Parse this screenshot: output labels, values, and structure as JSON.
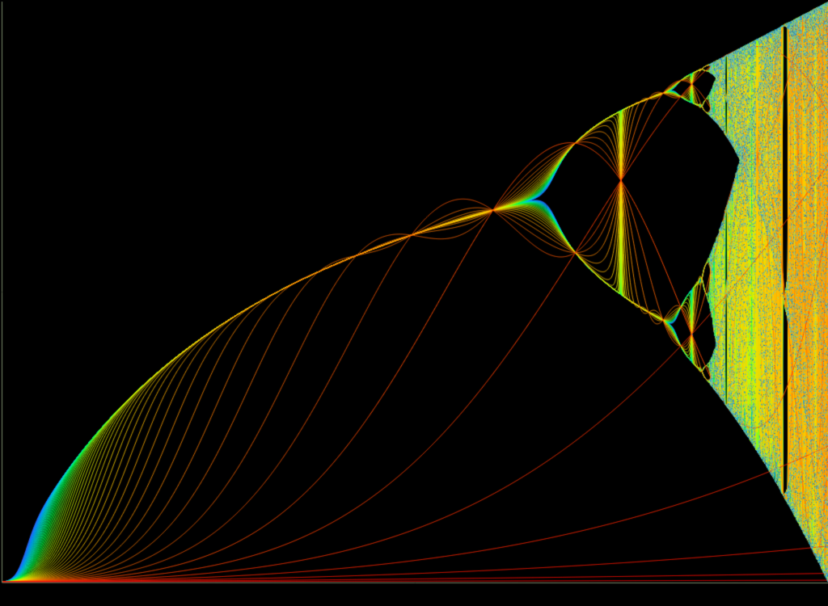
{
  "scene": {
    "subject": "logistic-map-bifurcation-iterates",
    "background_color": "#000000",
    "axis_color": "#7a8a6a",
    "iterate_palette": [
      "#ff0000",
      "#ff6a00",
      "#ffd000",
      "#c8ff00",
      "#00ff40",
      "#00e0c0",
      "#00a0ff",
      "#3060ff"
    ],
    "chaos_palette": [
      "#1a6fb0",
      "#2aa0d0",
      "#58c0e0",
      "#90d060",
      "#d0e040"
    ],
    "r_range": [
      1,
      4
    ],
    "x_range": [
      0,
      1
    ],
    "iterate_count": 60
  }
}
